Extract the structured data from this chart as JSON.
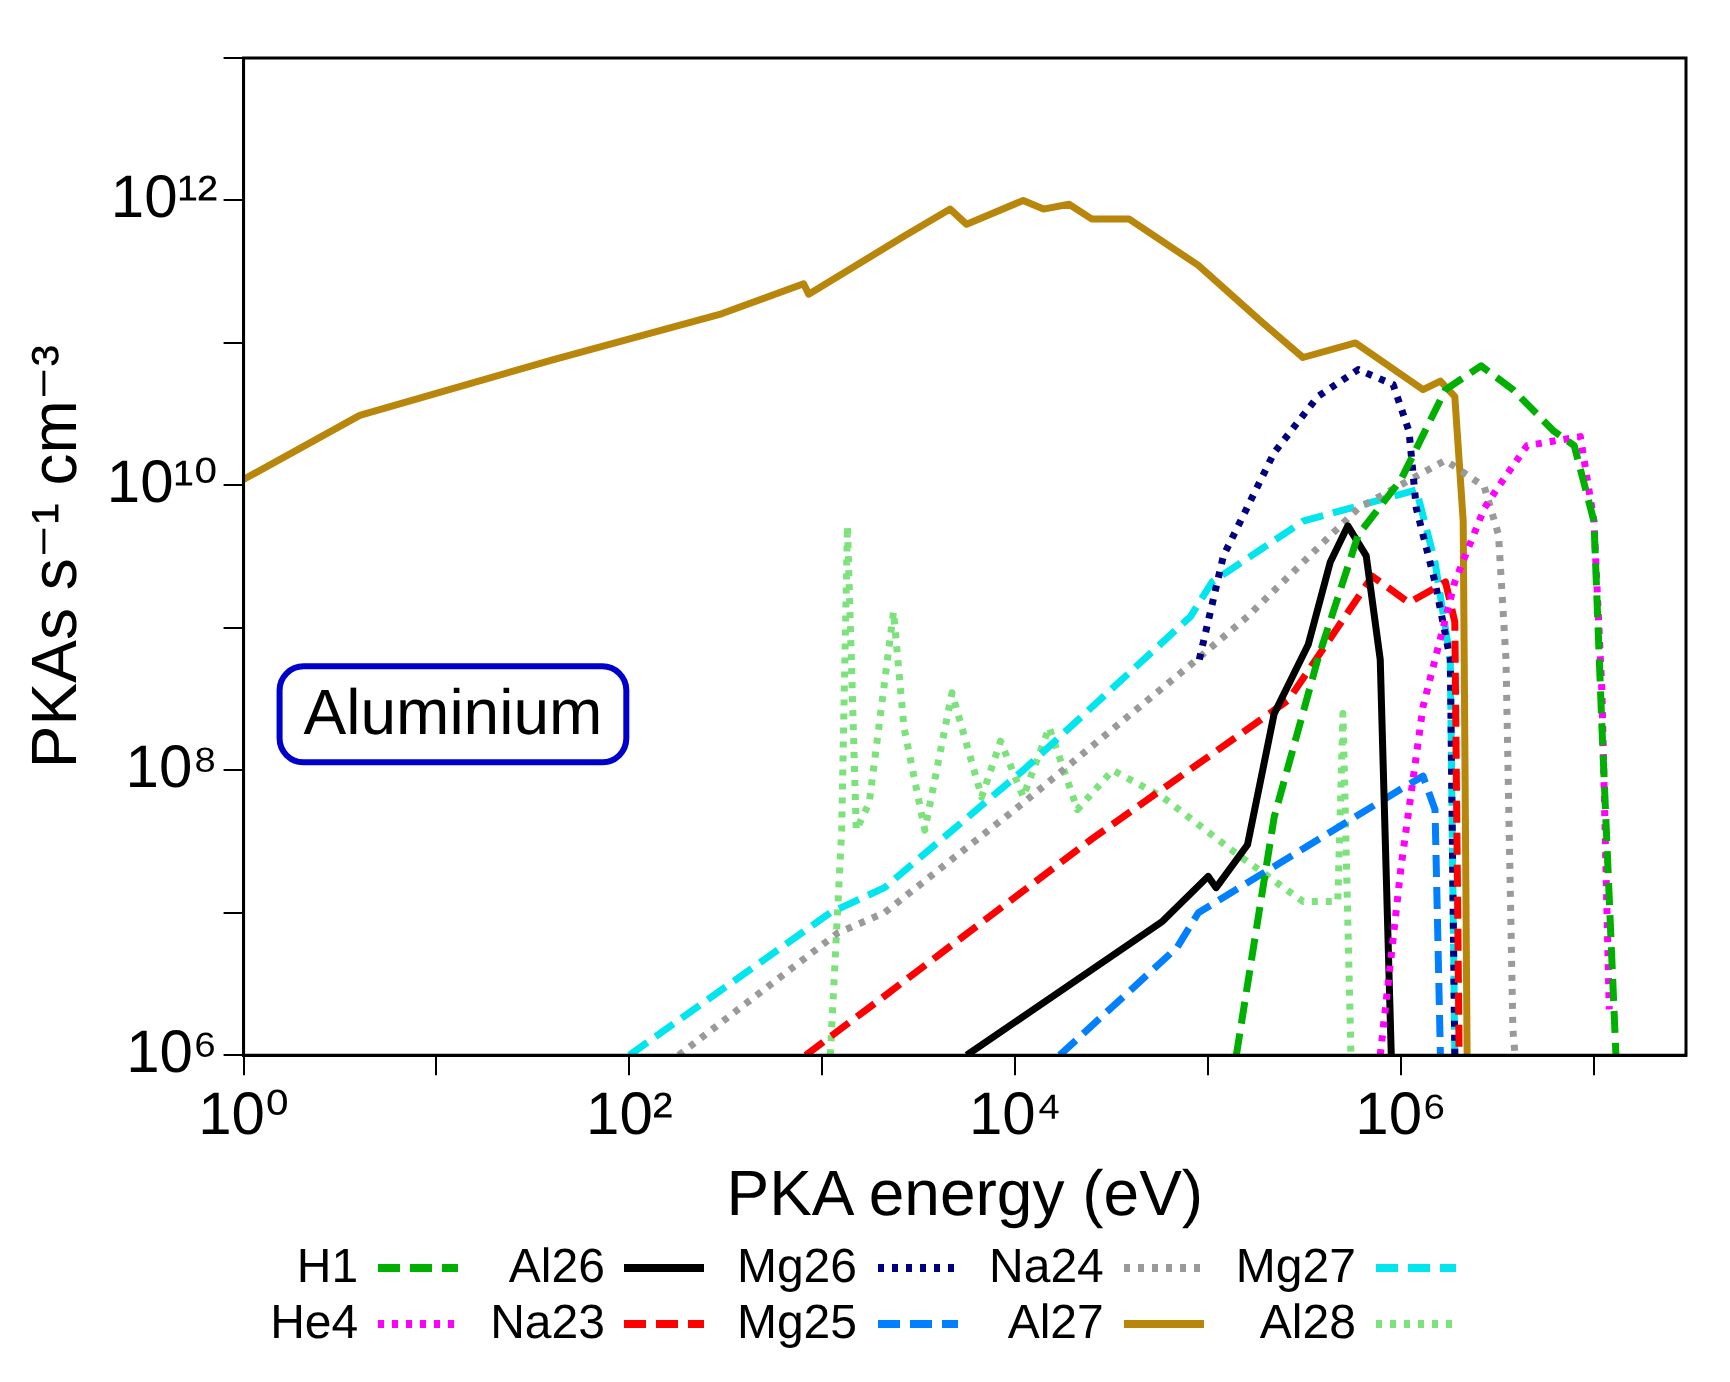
{
  "chart_data": {
    "type": "line",
    "xlabel": "PKA energy (eV)",
    "ylabel": "PKAs s⁻¹ cm⁻³",
    "log": "xy",
    "grid": false,
    "legend": "bottom",
    "marker": "none",
    "xlim": [
      1,
      30000000.0
    ],
    "ylim": [
      1000000.0,
      10000000000000.0
    ],
    "xticks": [
      {
        "value": 1,
        "label": "10⁰"
      },
      {
        "value": 10,
        "label": null
      },
      {
        "value": 100,
        "label": "10²"
      },
      {
        "value": 1000,
        "label": null
      },
      {
        "value": 10000,
        "label": "10⁴"
      },
      {
        "value": 100000,
        "label": null
      },
      {
        "value": 1000000,
        "label": "10⁶"
      },
      {
        "value": 10000000,
        "label": null
      }
    ],
    "yticks": [
      {
        "value": 1000000.0,
        "label": "10⁶"
      },
      {
        "value": 10000000.0,
        "label": null
      },
      {
        "value": 100000000.0,
        "label": "10⁸"
      },
      {
        "value": 1000000000.0,
        "label": null
      },
      {
        "value": 10000000000.0,
        "label": "10¹⁰"
      },
      {
        "value": 100000000000.0,
        "label": null
      },
      {
        "value": 1000000000000.0,
        "label": "10¹²"
      },
      {
        "value": 10000000000000.0,
        "label": null
      }
    ],
    "annotations": [
      "Aluminium"
    ],
    "series": [
      {
        "name": "H1",
        "color": "#00b000",
        "line_style": "dashed",
        "x": [
          140000.0,
          220000.0,
          370000.0,
          600000.0,
          1000000.0,
          1700000.0,
          2600000.0,
          3800000.0,
          6200000.0,
          7900000.0,
          10000000.0,
          11000000.0,
          13000000.0
        ],
        "values": [
          1000000.0,
          47000000.0,
          600000000.0,
          4500000000.0,
          11000000000.0,
          47000000000.0,
          69000000000.0,
          47000000000.0,
          24000000000.0,
          19000000000.0,
          5600000000.0,
          200000000.0,
          1000000.0
        ]
      },
      {
        "name": "He4",
        "color": "#ff00ff",
        "line_style": "dotted",
        "x": [
          780000.0,
          1000000.0,
          1300000.0,
          1900000.0,
          2700000.0,
          3200000.0,
          4500000.0,
          8500000.0,
          10000000.0,
          11000000.0,
          12000000.0
        ],
        "values": [
          1000000.0,
          21000000.0,
          280000000.0,
          2100000000.0,
          6900000000.0,
          9800000000.0,
          19000000000.0,
          22000000000.0,
          5600000000.0,
          350000000.0,
          2100000.0
        ]
      },
      {
        "name": "Al26",
        "color": "#000000",
        "line_style": "solid",
        "x": [
          5600,
          58000.0,
          100000.0,
          110000.0,
          160000.0,
          220000.0,
          330000.0,
          430000.0,
          530000.0,
          660000.0,
          780000.0,
          890000.0
        ],
        "values": [
          1000000.0,
          8700000.0,
          18000000.0,
          15000000.0,
          30000000.0,
          250000000.0,
          760000000.0,
          2900000000.0,
          5200000000.0,
          3200000000.0,
          600000000.0,
          1000000.0
        ]
      },
      {
        "name": "Na23",
        "color": "#ff0000",
        "line_style": "dashed",
        "x": [
          820,
          2100,
          25000.0,
          260000.0,
          710000.0,
          1100000.0,
          1700000.0,
          1900000.0,
          2000000.0
        ],
        "values": [
          1000000.0,
          2600000.0,
          33000000.0,
          310000000.0,
          2300000000.0,
          1500000000.0,
          2100000000.0,
          1100000000.0,
          1000000.0
        ]
      },
      {
        "name": "Mg26",
        "color": "#000080",
        "line_style": "dotted",
        "x": [
          90000.0,
          120000.0,
          220000.0,
          370000.0,
          600000.0,
          910000.0,
          1100000.0,
          1200000.0,
          1500000.0,
          1800000.0,
          1900000.0
        ],
        "values": [
          600000000.0,
          3200000000.0,
          17000000000.0,
          42000000000.0,
          65000000000.0,
          51000000000.0,
          24000000000.0,
          6900000000.0,
          2100000000.0,
          600000000.0,
          1000000.0
        ]
      },
      {
        "name": "Mg25",
        "color": "#0080ff",
        "line_style": "dashed",
        "x": [
          17000.0,
          69000.0,
          89000.0,
          1000000.0,
          1300000.0,
          1500000.0,
          1600000.0
        ],
        "values": [
          1000000.0,
          5700000.0,
          10000000.0,
          74000000.0,
          91000000.0,
          53000000.0,
          1000000.0
        ]
      },
      {
        "name": "Na24",
        "color": "#9a9a9a",
        "line_style": "dotted",
        "x": [
          180,
          1200,
          2100,
          11000.0,
          81000.0,
          160000.0,
          600000.0,
          1700000.0,
          2700000.0,
          3200000.0,
          3500000.0,
          3800000.0,
          3900000.0
        ],
        "values": [
          1000000.0,
          7200000.0,
          10000000.0,
          59000000.0,
          550000000.0,
          1200000000.0,
          6900000000.0,
          15000000000.0,
          9800000000.0,
          4500000000.0,
          600000000.0,
          1500000.0,
          1000000.0
        ]
      },
      {
        "name": "Al27",
        "color": "#b8860b",
        "line_style": "solid",
        "x": [
          1,
          4,
          40,
          300,
          800,
          850,
          2650,
          4600,
          5600,
          11000.0,
          14000.0,
          19000.0,
          25000.0,
          39000.0,
          89000.0,
          190000.0,
          310000.0,
          580000.0,
          1300000.0,
          1600000.0,
          1900000.0,
          2100000.0,
          2200000.0
        ],
        "values": [
          11000000000.0,
          31000000000.0,
          76000000000.0,
          160000000000.0,
          260000000000.0,
          220000000000.0,
          560000000000.0,
          870000000000.0,
          680000000000.0,
          1000000000000.0,
          870000000000.0,
          940000000000.0,
          740000000000.0,
          740000000000.0,
          350000000000.0,
          140000000000.0,
          79000000000.0,
          100000000000.0,
          47000000000.0,
          54000000000.0,
          42000000000.0,
          5600000000.0,
          1000000.0
        ]
      },
      {
        "name": "Mg27",
        "color": "#00e5ee",
        "line_style": "dashed",
        "x": [
          100,
          1100,
          2100,
          11000.0,
          81000.0,
          105000.0,
          310000.0,
          1200000.0,
          1500000.0,
          1800000.0,
          1900000.0
        ],
        "values": [
          1000000.0,
          10000000.0,
          15000000.0,
          100000000.0,
          1200000000.0,
          2100000000.0,
          5600000000.0,
          9300000000.0,
          2900000000.0,
          600000000.0,
          1000000.0
        ]
      },
      {
        "name": "Al28",
        "color": "#7ce37c",
        "line_style": "dotted",
        "x": [
          1100,
          1260,
          1350,
          1500,
          1750,
          2340,
          2650,
          3400,
          4700,
          6700,
          8400,
          11000.0,
          15000.0,
          21000.0,
          32000.0,
          58000.0,
          135000.0,
          310000.0,
          470000.0,
          500000.0,
          550000.0
        ],
        "values": [
          1000000.0,
          38000000.0,
          5200000000.0,
          38000000.0,
          59000000.0,
          1300000000.0,
          200000000.0,
          38000000.0,
          350000000.0,
          65000000.0,
          160000000.0,
          65000000.0,
          200000000.0,
          53000000.0,
          100000000.0,
          65000000.0,
          27000000.0,
          12000000.0,
          12000000.0,
          250000000.0,
          1000000.0
        ]
      }
    ]
  }
}
